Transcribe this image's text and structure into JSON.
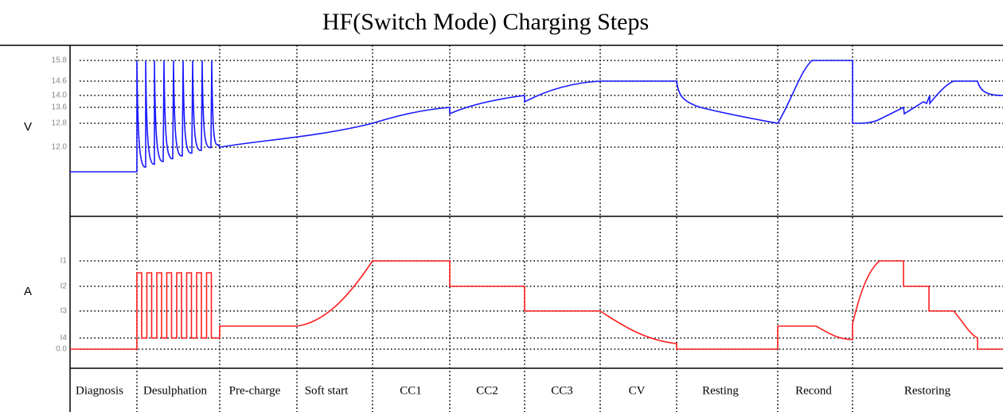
{
  "title": "HF(Switch Mode) Charging Steps",
  "voltage_panel": {
    "axis_label": "V",
    "ticks": [
      "15.8",
      "14.6",
      "14.0",
      "13.6",
      "12.8",
      "12.0"
    ]
  },
  "current_panel": {
    "axis_label": "A",
    "ticks": [
      "I1",
      "I2",
      "I3",
      "I4",
      "0.0"
    ]
  },
  "steps": [
    "Diagnosis",
    "Desulphation",
    "Pre-charge",
    "Soft start",
    "CC1",
    "CC2",
    "CC3",
    "CV",
    "Resting",
    "Recond",
    "Restoring"
  ]
}
